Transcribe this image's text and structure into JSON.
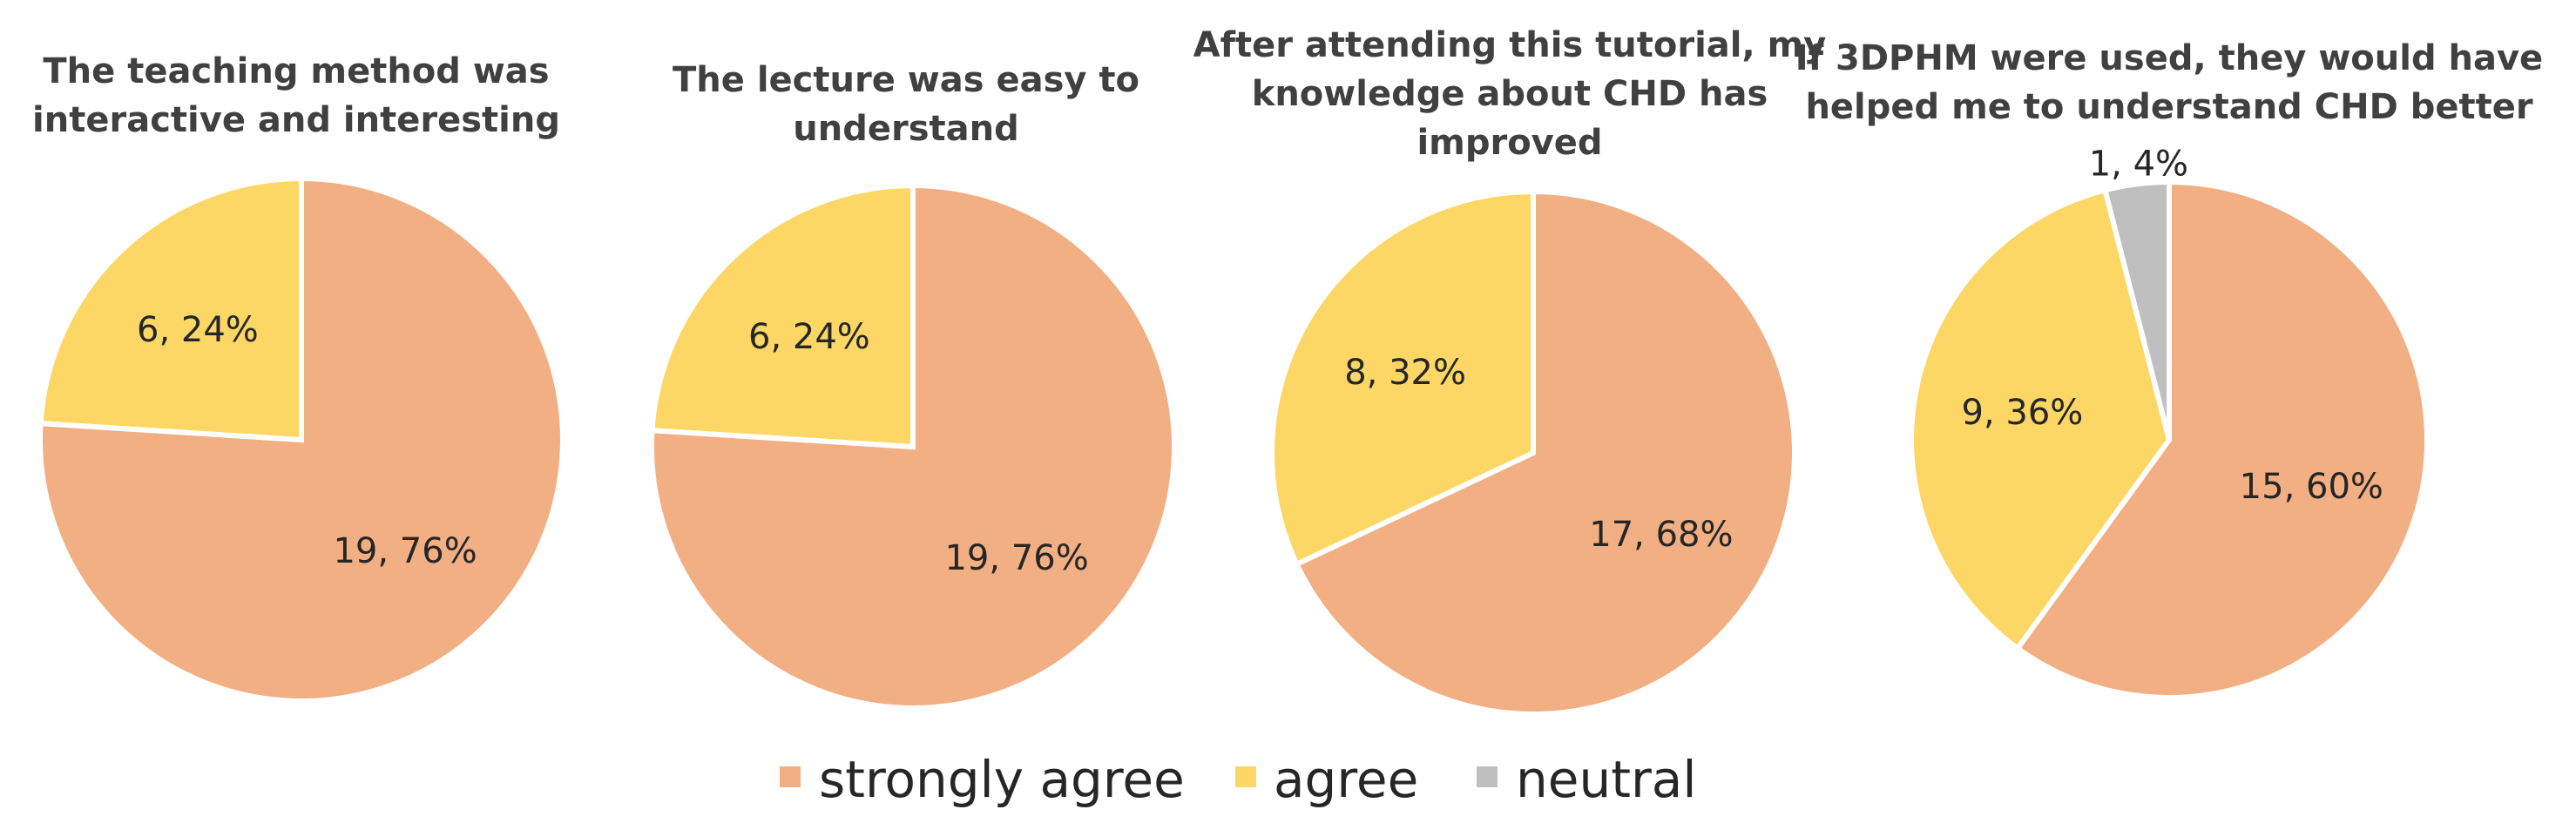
{
  "colors": {
    "strongly agree": "#F2AF83",
    "agree": "#FCD766",
    "neutral": "#BFBFBF",
    "slice_border": "#ffffff"
  },
  "legend": {
    "placement": "bottom-center",
    "items": [
      "strongly agree",
      "agree",
      "neutral"
    ]
  },
  "chart_data": [
    {
      "type": "pie",
      "title": "The teaching method was interactive and interesting",
      "title_lines": [
        "The teaching method was",
        "interactive and interesting"
      ],
      "slices": [
        {
          "category": "strongly agree",
          "count": 19,
          "percent": 76,
          "label": "19, 76%"
        },
        {
          "category": "agree",
          "count": 6,
          "percent": 24,
          "label": "6, 24%"
        }
      ]
    },
    {
      "type": "pie",
      "title": "The lecture was easy to understand",
      "title_lines": [
        "The lecture was easy to",
        "understand"
      ],
      "slices": [
        {
          "category": "strongly agree",
          "count": 19,
          "percent": 76,
          "label": "19, 76%"
        },
        {
          "category": "agree",
          "count": 6,
          "percent": 24,
          "label": "6, 24%"
        }
      ]
    },
    {
      "type": "pie",
      "title": "After attending this tutorial, my knowledge about CHD has improved",
      "title_lines": [
        "After attending this tutorial, my",
        "knowledge about CHD has",
        "improved"
      ],
      "slices": [
        {
          "category": "strongly agree",
          "count": 17,
          "percent": 68,
          "label": "17, 68%"
        },
        {
          "category": "agree",
          "count": 8,
          "percent": 32,
          "label": "8, 32%"
        }
      ]
    },
    {
      "type": "pie",
      "title": "If 3DPHM were used, they would have helped me to understand CHD better",
      "title_lines": [
        "If 3DPHM were used, they would have",
        "helped me to understand CHD better"
      ],
      "slices": [
        {
          "category": "strongly agree",
          "count": 15,
          "percent": 60,
          "label": "15, 60%"
        },
        {
          "category": "agree",
          "count": 9,
          "percent": 36,
          "label": "9, 36%"
        },
        {
          "category": "neutral",
          "count": 1,
          "percent": 4,
          "label": "1, 4%"
        }
      ]
    }
  ]
}
